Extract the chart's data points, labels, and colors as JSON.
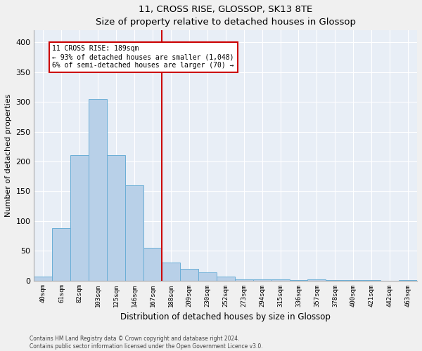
{
  "title": "11, CROSS RISE, GLOSSOP, SK13 8TE",
  "subtitle": "Size of property relative to detached houses in Glossop",
  "xlabel": "Distribution of detached houses by size in Glossop",
  "ylabel": "Number of detached properties",
  "bar_color": "#b8d0e8",
  "bar_edge_color": "#6aaed6",
  "bg_color": "#e8eef6",
  "grid_color": "#ffffff",
  "fig_bg_color": "#f0f0f0",
  "categories": [
    "40sqm",
    "61sqm",
    "82sqm",
    "103sqm",
    "125sqm",
    "146sqm",
    "167sqm",
    "188sqm",
    "209sqm",
    "230sqm",
    "252sqm",
    "273sqm",
    "294sqm",
    "315sqm",
    "336sqm",
    "357sqm",
    "378sqm",
    "400sqm",
    "421sqm",
    "442sqm",
    "463sqm"
  ],
  "values": [
    7,
    88,
    210,
    305,
    210,
    160,
    55,
    30,
    20,
    14,
    7,
    2,
    2,
    2,
    1,
    2,
    1,
    1,
    1,
    0,
    1
  ],
  "property_line_x": 6.5,
  "annotation_line1": "11 CROSS RISE: 189sqm",
  "annotation_line2": "← 93% of detached houses are smaller (1,048)",
  "annotation_line3": "6% of semi-detached houses are larger (70) →",
  "annotation_box_color": "#cc0000",
  "ylim": [
    0,
    420
  ],
  "yticks": [
    0,
    50,
    100,
    150,
    200,
    250,
    300,
    350,
    400
  ],
  "footer1": "Contains HM Land Registry data © Crown copyright and database right 2024.",
  "footer2": "Contains public sector information licensed under the Open Government Licence v3.0."
}
